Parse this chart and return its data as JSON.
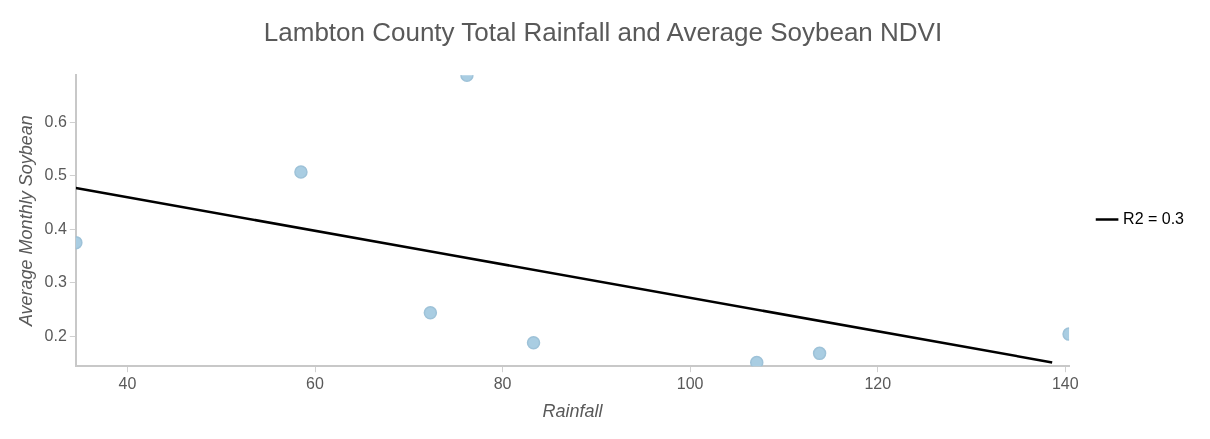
{
  "chart_data": {
    "type": "scatter",
    "title": "Lambton County Total Rainfall and Average Soybean NDVI",
    "xlabel": "Rainfall",
    "ylabel": "Average Monthly Soybean",
    "xlim": [
      34.5,
      140.4
    ],
    "ylim": [
      0.144,
      0.688
    ],
    "xticks": [
      40,
      60,
      80,
      100,
      120,
      140
    ],
    "yticks": [
      0.2,
      0.3,
      0.4,
      0.5,
      0.6
    ],
    "grid": false,
    "legend": "right",
    "marker": "circle",
    "series": [
      {
        "color": "#a9cde2",
        "x": [
          34.5,
          58.5,
          76.2,
          72.3,
          83.3,
          107.1,
          113.8,
          140.4
        ],
        "values": [
          0.375,
          0.507,
          0.688,
          0.244,
          0.188,
          0.151,
          0.168,
          0.204
        ]
      },
      {
        "type": "line",
        "name": "R2 = 0.3",
        "color": "#000000",
        "x": [
          34.5,
          138.6
        ],
        "values": [
          0.477,
          0.151
        ],
        "marker": "none",
        "line_style": "solid"
      }
    ]
  }
}
